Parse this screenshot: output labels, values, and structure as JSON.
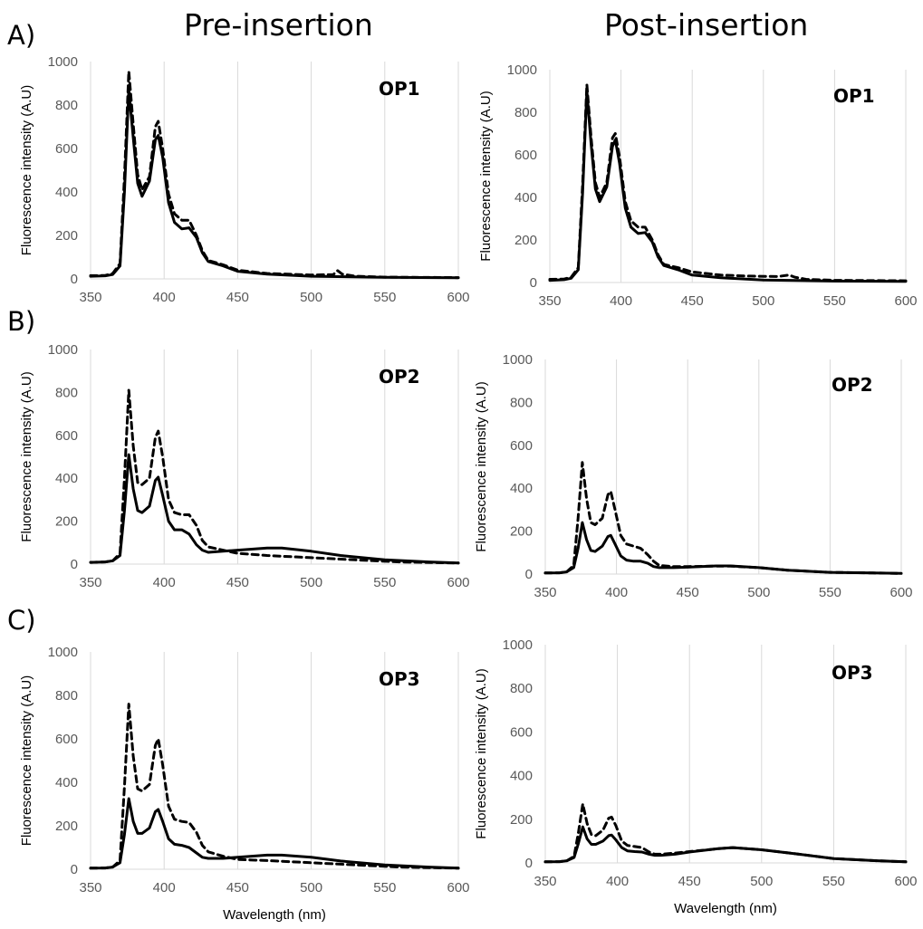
{
  "figure": {
    "col_titles": [
      "Pre-insertion",
      "Post-insertion"
    ],
    "row_labels": [
      "A)",
      "B)",
      "C)"
    ]
  },
  "colors": {
    "line": "#000000",
    "grid": "#d9d9d9",
    "tick": "#595959"
  },
  "chart_data": [
    {
      "id": "A-pre",
      "type": "line",
      "title": "OP1",
      "xlabel": "",
      "ylabel": "Fluorescence intensity (A.U)",
      "xlim": [
        350,
        600
      ],
      "ylim": [
        0,
        1000
      ],
      "xticks": [
        350,
        400,
        450,
        500,
        550,
        600
      ],
      "yticks": [
        0,
        200,
        400,
        600,
        800,
        1000
      ],
      "grid": "vertical",
      "series": [
        {
          "style": "solid",
          "x": [
            350,
            360,
            365,
            370,
            373,
            376,
            379,
            382,
            385,
            390,
            394,
            396,
            399,
            403,
            407,
            412,
            417,
            422,
            426,
            430,
            440,
            450,
            470,
            500,
            550,
            600
          ],
          "values": [
            12,
            14,
            20,
            60,
            400,
            870,
            650,
            440,
            380,
            450,
            640,
            660,
            560,
            350,
            260,
            230,
            235,
            190,
            120,
            80,
            60,
            35,
            22,
            12,
            7,
            5
          ]
        },
        {
          "style": "dashed",
          "x": [
            350,
            360,
            365,
            370,
            373,
            376,
            379,
            382,
            385,
            390,
            394,
            396,
            399,
            403,
            407,
            412,
            417,
            422,
            426,
            430,
            440,
            450,
            470,
            500,
            515,
            518,
            521,
            530,
            550,
            600
          ],
          "values": [
            15,
            16,
            25,
            70,
            470,
            955,
            710,
            480,
            410,
            470,
            700,
            725,
            600,
            390,
            300,
            270,
            270,
            200,
            130,
            85,
            65,
            40,
            25,
            18,
            20,
            38,
            22,
            12,
            8,
            6
          ]
        }
      ]
    },
    {
      "id": "A-post",
      "type": "line",
      "title": "OP1",
      "xlabel": "",
      "ylabel": "Fluorescence intensity (A.U)",
      "xlim": [
        350,
        600
      ],
      "ylim": [
        0,
        1000
      ],
      "xticks": [
        350,
        400,
        450,
        500,
        550,
        600
      ],
      "yticks": [
        0,
        200,
        400,
        600,
        800,
        1000
      ],
      "grid": "vertical",
      "series": [
        {
          "style": "solid",
          "x": [
            350,
            360,
            365,
            370,
            373,
            376,
            379,
            382,
            385,
            390,
            394,
            396,
            399,
            403,
            407,
            412,
            417,
            422,
            426,
            430,
            440,
            450,
            470,
            500,
            550,
            600
          ],
          "values": [
            10,
            13,
            20,
            60,
            420,
            900,
            650,
            440,
            380,
            450,
            640,
            670,
            560,
            350,
            260,
            230,
            235,
            190,
            120,
            80,
            60,
            35,
            22,
            12,
            7,
            5
          ]
        },
        {
          "style": "dashed",
          "x": [
            350,
            360,
            365,
            370,
            373,
            376,
            379,
            382,
            385,
            390,
            394,
            396,
            399,
            403,
            407,
            412,
            417,
            422,
            426,
            430,
            440,
            450,
            470,
            490,
            510,
            518,
            522,
            530,
            550,
            600
          ],
          "values": [
            15,
            16,
            25,
            70,
            460,
            930,
            680,
            470,
            400,
            470,
            680,
            700,
            590,
            380,
            290,
            260,
            260,
            200,
            130,
            85,
            70,
            50,
            35,
            30,
            28,
            35,
            25,
            15,
            10,
            8
          ]
        }
      ]
    },
    {
      "id": "B-pre",
      "type": "line",
      "title": "OP2",
      "xlabel": "",
      "ylabel": "Fluorescence intensity (A.U)",
      "xlim": [
        350,
        600
      ],
      "ylim": [
        0,
        1000
      ],
      "xticks": [
        350,
        400,
        450,
        500,
        550,
        600
      ],
      "yticks": [
        0,
        200,
        400,
        600,
        800,
        1000
      ],
      "grid": "vertical",
      "series": [
        {
          "style": "solid",
          "x": [
            350,
            360,
            365,
            370,
            373,
            376,
            379,
            382,
            385,
            390,
            394,
            396,
            399,
            403,
            407,
            412,
            417,
            422,
            426,
            430,
            440,
            450,
            470,
            480,
            500,
            520,
            550,
            580,
            600
          ],
          "values": [
            8,
            10,
            15,
            40,
            250,
            510,
            350,
            250,
            240,
            270,
            390,
            405,
            320,
            200,
            160,
            160,
            140,
            90,
            65,
            55,
            60,
            65,
            75,
            75,
            60,
            40,
            20,
            10,
            5
          ]
        },
        {
          "style": "dashed",
          "x": [
            350,
            360,
            365,
            370,
            373,
            376,
            379,
            382,
            385,
            390,
            394,
            396,
            399,
            403,
            407,
            412,
            417,
            422,
            426,
            430,
            440,
            450,
            470,
            500,
            530,
            560,
            600
          ],
          "values": [
            8,
            10,
            15,
            50,
            400,
            810,
            550,
            380,
            370,
            400,
            590,
            620,
            500,
            300,
            240,
            230,
            230,
            180,
            110,
            80,
            65,
            50,
            40,
            30,
            20,
            10,
            5
          ]
        }
      ]
    },
    {
      "id": "B-post",
      "type": "line",
      "title": "OP2",
      "xlabel": "",
      "ylabel": "Fluorescence intensity (A.U)",
      "xlim": [
        350,
        600
      ],
      "ylim": [
        0,
        1000
      ],
      "xticks": [
        350,
        400,
        450,
        500,
        550,
        600
      ],
      "yticks": [
        0,
        200,
        400,
        600,
        800,
        1000
      ],
      "grid": "vertical",
      "series": [
        {
          "style": "solid",
          "x": [
            350,
            360,
            365,
            370,
            373,
            376,
            379,
            382,
            385,
            390,
            394,
            396,
            399,
            403,
            407,
            412,
            417,
            422,
            426,
            430,
            440,
            450,
            470,
            480,
            500,
            520,
            550,
            580,
            600
          ],
          "values": [
            5,
            6,
            10,
            30,
            120,
            240,
            160,
            110,
            105,
            130,
            175,
            180,
            140,
            85,
            65,
            60,
            60,
            50,
            35,
            30,
            30,
            32,
            38,
            38,
            30,
            18,
            8,
            5,
            3
          ]
        },
        {
          "style": "dashed",
          "x": [
            350,
            360,
            365,
            370,
            373,
            376,
            379,
            382,
            385,
            390,
            394,
            396,
            399,
            403,
            407,
            412,
            417,
            422,
            426,
            430,
            440,
            450,
            470,
            480,
            500,
            520,
            550,
            580,
            600
          ],
          "values": [
            5,
            6,
            10,
            40,
            260,
            520,
            350,
            240,
            230,
            260,
            370,
            385,
            300,
            180,
            140,
            130,
            120,
            90,
            60,
            40,
            35,
            35,
            37,
            37,
            30,
            18,
            8,
            5,
            3
          ]
        }
      ]
    },
    {
      "id": "C-pre",
      "type": "line",
      "title": "OP3",
      "xlabel": "Wavelength (nm)",
      "ylabel": "Fluorescence intensity (A.U)",
      "xlim": [
        350,
        600
      ],
      "ylim": [
        0,
        1000
      ],
      "xticks": [
        350,
        400,
        450,
        500,
        550,
        600
      ],
      "yticks": [
        0,
        200,
        400,
        600,
        800,
        1000
      ],
      "grid": "vertical",
      "series": [
        {
          "style": "solid",
          "x": [
            350,
            360,
            365,
            370,
            373,
            376,
            379,
            382,
            385,
            390,
            394,
            396,
            399,
            403,
            407,
            412,
            417,
            422,
            426,
            430,
            440,
            450,
            470,
            480,
            500,
            520,
            550,
            580,
            600
          ],
          "values": [
            5,
            6,
            10,
            30,
            160,
            325,
            220,
            165,
            165,
            190,
            265,
            275,
            220,
            140,
            115,
            110,
            100,
            75,
            55,
            50,
            50,
            55,
            65,
            65,
            55,
            38,
            20,
            10,
            5
          ]
        },
        {
          "style": "dashed",
          "x": [
            350,
            360,
            365,
            370,
            373,
            376,
            379,
            382,
            385,
            390,
            394,
            396,
            399,
            403,
            407,
            412,
            417,
            422,
            426,
            430,
            440,
            450,
            470,
            500,
            530,
            560,
            600
          ],
          "values": [
            5,
            6,
            10,
            40,
            380,
            760,
            520,
            370,
            360,
            390,
            570,
            600,
            480,
            290,
            230,
            220,
            215,
            170,
            110,
            80,
            60,
            45,
            40,
            30,
            20,
            10,
            5
          ]
        }
      ]
    },
    {
      "id": "C-post",
      "type": "line",
      "title": "OP3",
      "xlabel": "Wavelength (nm)",
      "ylabel": "Fluorescence intensity (A.U)",
      "xlim": [
        350,
        600
      ],
      "ylim": [
        0,
        1000
      ],
      "xticks": [
        350,
        400,
        450,
        500,
        550,
        600
      ],
      "yticks": [
        0,
        200,
        400,
        600,
        800,
        1000
      ],
      "grid": "vertical",
      "series": [
        {
          "style": "solid",
          "x": [
            350,
            360,
            365,
            370,
            373,
            376,
            379,
            382,
            385,
            390,
            394,
            396,
            399,
            403,
            407,
            412,
            417,
            422,
            426,
            430,
            440,
            450,
            470,
            480,
            500,
            520,
            550,
            580,
            600
          ],
          "values": [
            5,
            6,
            10,
            25,
            90,
            165,
            110,
            85,
            85,
            100,
            125,
            128,
            105,
            70,
            55,
            52,
            50,
            40,
            35,
            35,
            40,
            50,
            65,
            70,
            60,
            45,
            20,
            10,
            5
          ]
        },
        {
          "style": "dashed",
          "x": [
            350,
            360,
            365,
            370,
            373,
            376,
            379,
            382,
            385,
            390,
            394,
            396,
            399,
            403,
            407,
            412,
            417,
            422,
            426,
            430,
            440,
            450,
            470,
            480,
            500,
            520,
            550,
            580,
            600
          ],
          "values": [
            5,
            6,
            10,
            30,
            140,
            270,
            180,
            130,
            125,
            150,
            205,
            210,
            170,
            100,
            80,
            75,
            70,
            50,
            40,
            40,
            45,
            52,
            65,
            70,
            60,
            45,
            20,
            10,
            5
          ]
        }
      ]
    }
  ]
}
